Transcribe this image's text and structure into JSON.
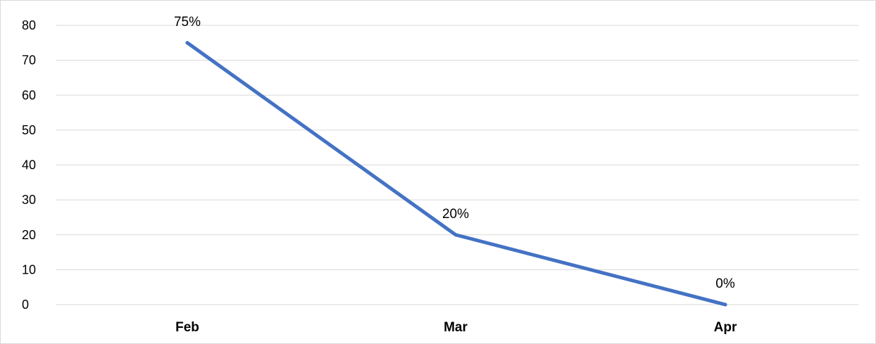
{
  "chart_data": {
    "type": "line",
    "categories": [
      "Feb",
      "Mar",
      "Apr"
    ],
    "series": [
      {
        "values": [
          75,
          20,
          0
        ],
        "data_labels": [
          "75%",
          "20%",
          "0%"
        ],
        "color": "#4472c4"
      }
    ],
    "ylim": [
      0,
      80
    ],
    "y_ticks": [
      0,
      10,
      20,
      30,
      40,
      50,
      60,
      70,
      80
    ],
    "grid": true,
    "legend": "none"
  }
}
